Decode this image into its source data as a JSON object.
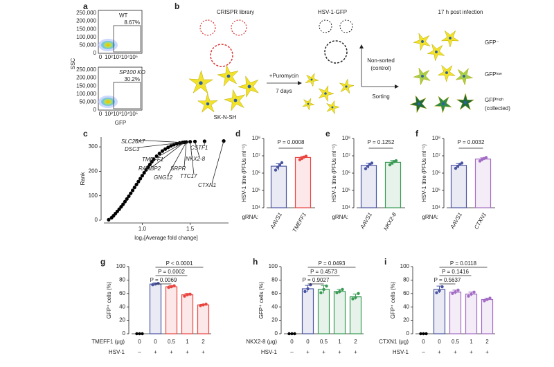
{
  "panel_a": {
    "label": "a",
    "ylabel": "SSC",
    "xlabel": "GFP",
    "yticks": [
      "0",
      "50,000",
      "100,000",
      "150,000",
      "200,000",
      "250,000"
    ],
    "xticks": [
      "0",
      "10²",
      "10³",
      "10⁴",
      "10⁵"
    ],
    "plots": [
      {
        "title": "WT",
        "percent": "8.67%"
      },
      {
        "title": "SP100 KO",
        "percent": "30.2%"
      }
    ]
  },
  "panel_b": {
    "label": "b",
    "library": "CRISPR library",
    "virus": "HSV-1-GFP",
    "timepoint": "17 h post infection",
    "selection": "+Puromycin",
    "duration": "7 days",
    "cell_line": "SK-N-SH",
    "control": "Non-sorted",
    "control_note": "(control)",
    "sorting": "Sorting",
    "gfp_neg": "GFP⁻",
    "gfp_low": "GFPˡᵒʷ",
    "gfp_high": "GFPʰⁱᵍʰ",
    "collected": "(collected)"
  },
  "chart_data": [
    {
      "type": "scatter",
      "panel": "c",
      "ylabel": "Rank",
      "xlabel": "log₂[Average fold change]",
      "color": "#000000",
      "x": [
        0.65,
        0.68,
        0.7,
        0.72,
        0.74,
        0.76,
        0.78,
        0.8,
        0.82,
        0.84,
        0.86,
        0.88,
        0.9,
        0.92,
        0.94,
        0.96,
        0.98,
        1.0,
        1.02,
        1.04,
        1.06,
        1.08,
        1.1,
        1.12,
        1.15,
        1.18,
        1.21,
        1.24,
        1.27,
        1.3,
        1.33,
        1.36,
        1.39,
        1.42,
        1.44,
        1.46,
        1.5,
        1.55,
        1.65,
        1.85
      ],
      "values": [
        2,
        10,
        18,
        27,
        36,
        45,
        55,
        65,
        76,
        87,
        98,
        110,
        122,
        134,
        146,
        158,
        170,
        182,
        194,
        206,
        217,
        228,
        239,
        249,
        262,
        273,
        283,
        291,
        298,
        304,
        309,
        313,
        316,
        318,
        319,
        320,
        321,
        322,
        323,
        324
      ],
      "xlim": [
        0.6,
        1.9
      ],
      "xticks": [
        {
          "value": 1,
          "label": "1.0"
        },
        {
          "value": 1.5,
          "label": "1.5"
        }
      ],
      "ylim": [
        0,
        340
      ],
      "yticks": [
        0,
        100,
        200,
        300
      ],
      "annotations": [
        {
          "text": "SLC26A7",
          "color": "#222222"
        },
        {
          "text": "DSC3",
          "color": "#222222"
        },
        {
          "text": "TMEFF1",
          "color": "#e8443f"
        },
        {
          "text": "RANBP2",
          "color": "#222222"
        },
        {
          "text": "GNG12",
          "color": "#222222"
        },
        {
          "text": "SRPR",
          "color": "#222222"
        },
        {
          "text": "TTC17",
          "color": "#222222"
        },
        {
          "text": "NKX2-8",
          "color": "#3a9a55"
        },
        {
          "text": "CSTF1",
          "color": "#222222"
        },
        {
          "text": "CTXN1",
          "color": "#a36cc4"
        }
      ]
    },
    {
      "type": "bar",
      "panel": "d",
      "log": true,
      "ylabel": "HSV-1 titre (PFUs ml⁻¹)",
      "category_label": "gRNA:",
      "p_value": "P = 0.0008",
      "categories": [
        "AAVS1",
        "TMEFF1"
      ],
      "values": [
        2500000,
        8000000
      ],
      "errors": [
        1000000,
        1500000
      ],
      "points": [
        [
          1500000,
          2200000,
          3000000,
          4000000
        ],
        [
          6000000,
          7000000,
          8500000,
          9500000
        ]
      ],
      "colors": [
        "#4a55a2",
        "#e8443f"
      ],
      "ylim": [
        10000,
        100000000
      ],
      "yticks": [
        {
          "value": 10000,
          "label": "10⁴"
        },
        {
          "value": 100000,
          "label": "10⁵"
        },
        {
          "value": 1000000,
          "label": "10⁶"
        },
        {
          "value": 10000000,
          "label": "10⁷"
        },
        {
          "value": 100000000,
          "label": "10⁸"
        }
      ]
    },
    {
      "type": "bar",
      "panel": "e",
      "log": true,
      "ylabel": "HSV-1 titre (PFUs ml⁻¹)",
      "category_label": "gRNA:",
      "p_value": "P = 0.1252",
      "categories": [
        "AAVS1",
        "NKX2-8"
      ],
      "values": [
        2800000,
        4200000
      ],
      "errors": [
        900000,
        1200000
      ],
      "points": [
        [
          1800000,
          2500000,
          3200000,
          3800000
        ],
        [
          3000000,
          3800000,
          4600000,
          5200000
        ]
      ],
      "colors": [
        "#4a55a2",
        "#3a9a55"
      ],
      "ylim": [
        10000,
        100000000
      ],
      "yticks": [
        {
          "value": 10000,
          "label": "10⁴"
        },
        {
          "value": 100000,
          "label": "10⁵"
        },
        {
          "value": 1000000,
          "label": "10⁶"
        },
        {
          "value": 10000000,
          "label": "10⁷"
        },
        {
          "value": 100000000,
          "label": "10⁸"
        }
      ]
    },
    {
      "type": "bar",
      "panel": "f",
      "log": true,
      "ylabel": "HSV-1 titre (PFUs ml⁻¹)",
      "category_label": "gRNA:",
      "p_value": "P = 0.0032",
      "categories": [
        "AAVS1",
        "CTXN1"
      ],
      "values": [
        2800000,
        6500000
      ],
      "errors": [
        800000,
        1200000
      ],
      "points": [
        [
          1900000,
          2500000,
          3200000,
          3800000
        ],
        [
          5000000,
          6000000,
          7000000,
          8000000
        ]
      ],
      "colors": [
        "#4a55a2",
        "#a36cc4"
      ],
      "ylim": [
        10000,
        100000000
      ],
      "yticks": [
        {
          "value": 10000,
          "label": "10⁴"
        },
        {
          "value": 100000,
          "label": "10⁵"
        },
        {
          "value": 1000000,
          "label": "10⁶"
        },
        {
          "value": 10000000,
          "label": "10⁷"
        },
        {
          "value": 100000000,
          "label": "10⁸"
        }
      ]
    },
    {
      "type": "bar",
      "panel": "g",
      "ylabel": "GFP⁺ cells (%)",
      "xlabel": "TMEFF1 (μg)",
      "row_label": "HSV-1",
      "row": [
        "–",
        "+",
        "+",
        "+",
        "+"
      ],
      "categories": [
        "0",
        "0",
        "0.5",
        "1",
        "2"
      ],
      "values": [
        0,
        74,
        70,
        58,
        43
      ],
      "errors": [
        0,
        1.5,
        1.5,
        2,
        1
      ],
      "points": [
        [
          0,
          0,
          0
        ],
        [
          73,
          74,
          75
        ],
        [
          69,
          70,
          71.5
        ],
        [
          56,
          58,
          59
        ],
        [
          42,
          43,
          44
        ]
      ],
      "colors": [
        "#000000",
        "#4a55a2",
        "#e8443f",
        "#e8443f",
        "#e8443f"
      ],
      "comparisons": [
        "P < 0.0001",
        "P = 0.0002",
        "P = 0.0069"
      ],
      "ylim": [
        0,
        100
      ],
      "yticks": [
        0,
        20,
        40,
        60,
        80,
        100
      ]
    },
    {
      "type": "bar",
      "panel": "h",
      "ylabel": "GFP⁺ cells (%)",
      "xlabel": "NKX2-8 (μg)",
      "row_label": "HSV-1",
      "row": [
        "–",
        "+",
        "+",
        "+",
        "+"
      ],
      "categories": [
        "0",
        "0",
        "0.5",
        "1",
        "2"
      ],
      "values": [
        0,
        67,
        66,
        63,
        55
      ],
      "errors": [
        0,
        5,
        6,
        3,
        4
      ],
      "points": [
        [
          0,
          0,
          0
        ],
        [
          63,
          67,
          73
        ],
        [
          61,
          66,
          71
        ],
        [
          61,
          63,
          66
        ],
        [
          52,
          54,
          60
        ]
      ],
      "colors": [
        "#000000",
        "#4a55a2",
        "#3a9a55",
        "#3a9a55",
        "#3a9a55"
      ],
      "comparisons": [
        "P = 0.0493",
        "P = 0.4573",
        "P = 0.9027"
      ],
      "ylim": [
        0,
        100
      ],
      "yticks": [
        0,
        20,
        40,
        60,
        80,
        100
      ]
    },
    {
      "type": "bar",
      "panel": "i",
      "ylabel": "GFP⁺ cells (%)",
      "xlabel": "CTXN1 (μg)",
      "row_label": "HSV-1",
      "row": [
        "–",
        "+",
        "+",
        "+",
        "+"
      ],
      "categories": [
        "0",
        "0",
        "0.5",
        "1",
        "2"
      ],
      "values": [
        0,
        66,
        62,
        59,
        51
      ],
      "errors": [
        0,
        5,
        3,
        3,
        2
      ],
      "points": [
        [
          0,
          0,
          0
        ],
        [
          61,
          64,
          70
        ],
        [
          60,
          62,
          65
        ],
        [
          56,
          59,
          62
        ],
        [
          49,
          51,
          53
        ]
      ],
      "colors": [
        "#000000",
        "#4a55a2",
        "#a36cc4",
        "#a36cc4",
        "#a36cc4"
      ],
      "comparisons": [
        "P = 0.0118",
        "P = 0.1416",
        "P = 0.5637"
      ],
      "ylim": [
        0,
        100
      ],
      "yticks": [
        0,
        20,
        40,
        60,
        80,
        100
      ]
    }
  ]
}
